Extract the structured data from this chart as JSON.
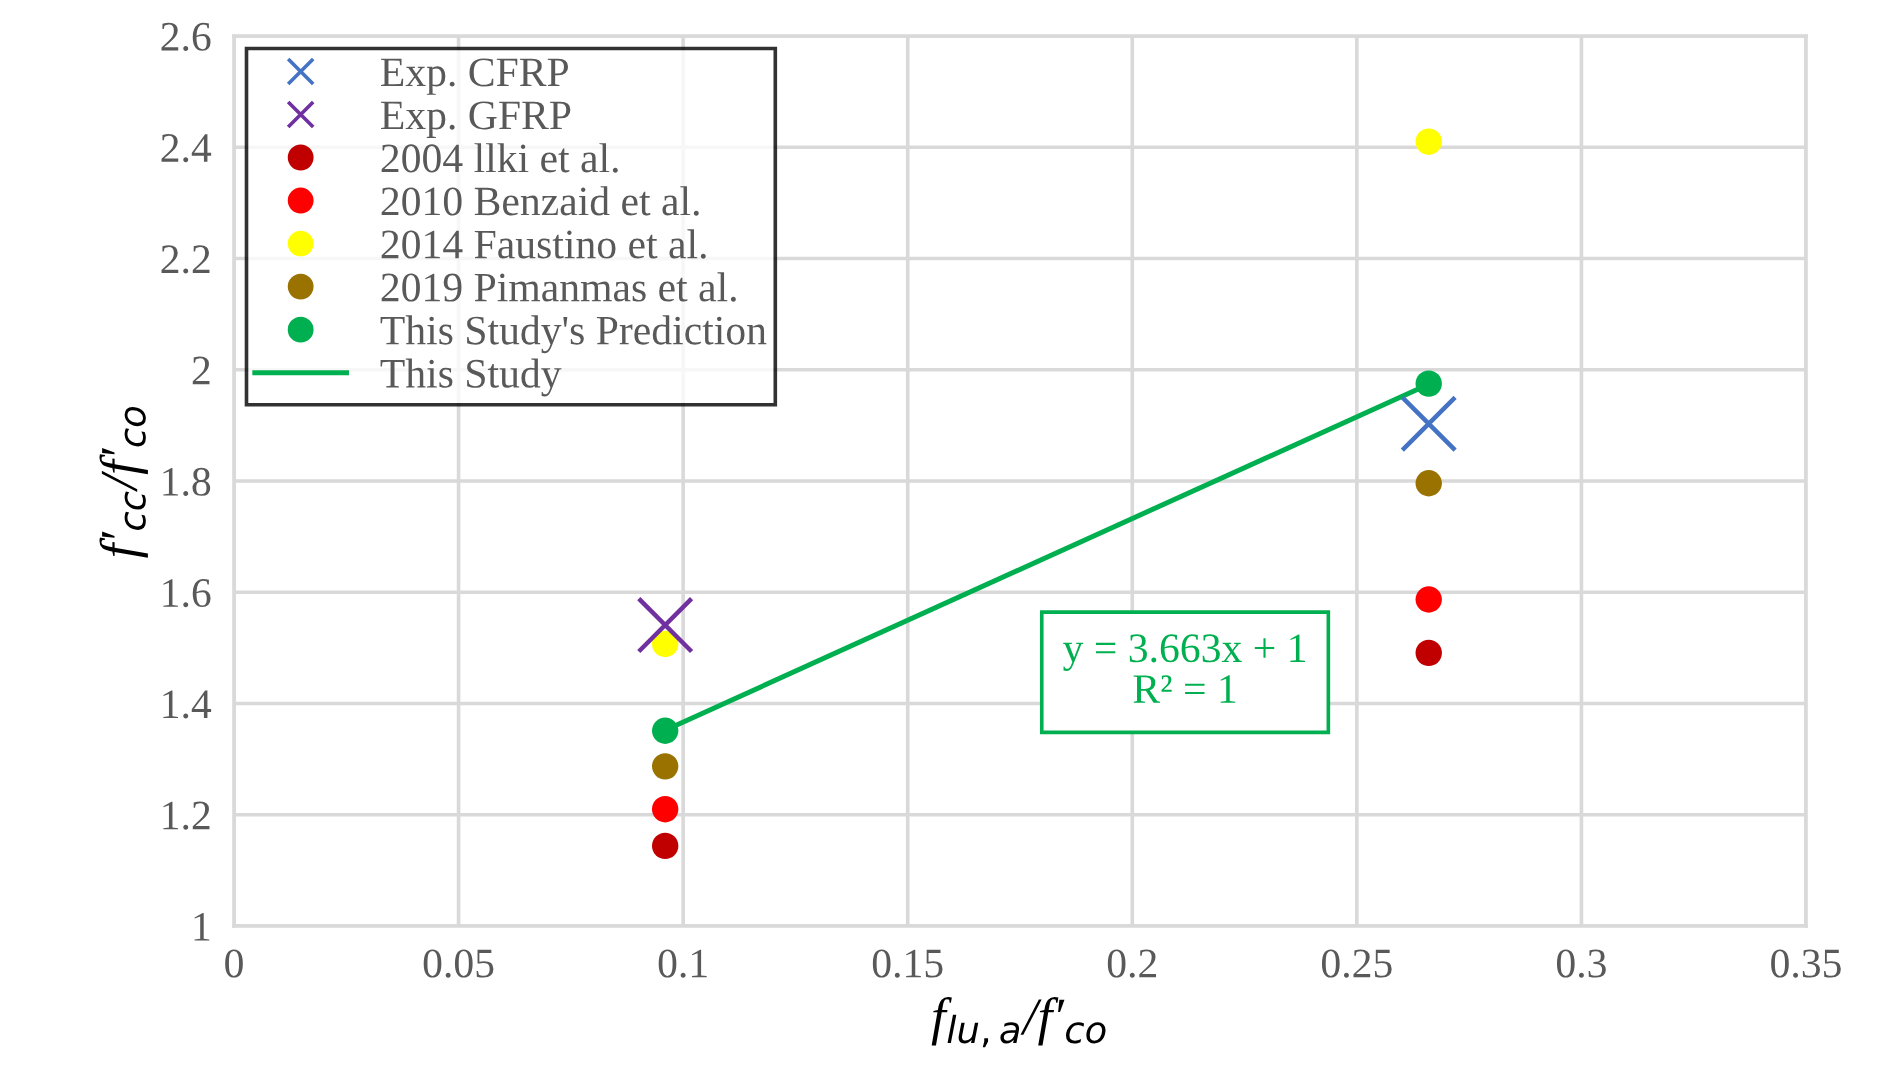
{
  "chart_data": {
    "type": "scatter",
    "xlabel": "f$_{lu,a}$/f′$_{co}$",
    "ylabel": "f′$_{cc}$/f′$_{co}$",
    "xlim": [
      0,
      0.35
    ],
    "xticks": [
      0,
      0.05,
      0.1,
      0.15,
      0.2,
      0.25,
      0.3,
      0.35
    ],
    "ylim": [
      1,
      2.6
    ],
    "yticks": [
      1,
      1.2,
      1.4,
      1.6,
      1.8,
      2,
      2.2,
      2.4,
      2.6
    ],
    "grid": true,
    "legend": "top left",
    "x": [
      0.096,
      0.266
    ],
    "series": [
      {
        "name": "Exp. CFRP",
        "color": "#4472c4",
        "marker": "cross",
        "values": [
          null,
          1.903
        ]
      },
      {
        "name": "Exp. GFRP",
        "color": "#7030a0",
        "marker": "cross",
        "values": [
          1.541,
          null
        ]
      },
      {
        "name": "2004 llki et al.",
        "color": "#c00000",
        "marker": "circle",
        "values": [
          1.144,
          1.491
        ]
      },
      {
        "name": "2010 Benzaid et al.",
        "color": "#ff0000",
        "marker": "circle",
        "values": [
          1.21,
          1.587
        ]
      },
      {
        "name": "2014 Faustino et al.",
        "color": "#ffff00",
        "marker": "circle",
        "values": [
          1.507,
          2.41
        ]
      },
      {
        "name": "2019 Pimanmas et al.",
        "color": "#9a7200",
        "marker": "circle",
        "values": [
          1.287,
          1.796
        ]
      },
      {
        "name": "This Study's Prediction",
        "color": "#00b050",
        "marker": "circle",
        "values": [
          1.351,
          1.975
        ]
      },
      {
        "name": "This Study",
        "type": "line",
        "color": "#00b050",
        "marker": "none",
        "values": [
          1.352,
          1.974
        ]
      }
    ],
    "annotations": [
      "y = 3.663x + 1\nR² = 1"
    ]
  }
}
